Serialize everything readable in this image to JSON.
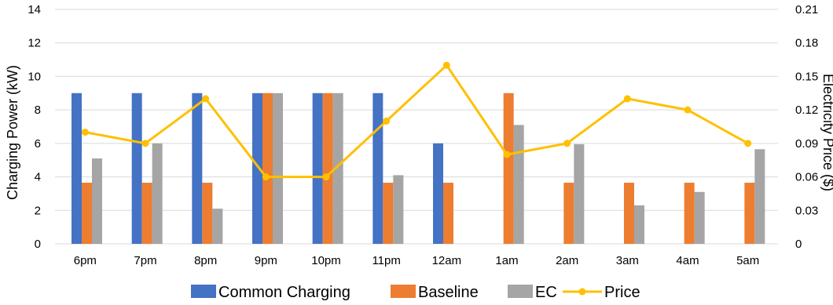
{
  "chart_data": {
    "type": "bar",
    "categories": [
      "6pm",
      "7pm",
      "8pm",
      "9pm",
      "10pm",
      "11pm",
      "12am",
      "1am",
      "2am",
      "3am",
      "4am",
      "5am"
    ],
    "series": [
      {
        "name": "Common Charging",
        "kind": "bar",
        "axis": "left",
        "color": "#4472c4",
        "values": [
          9,
          9,
          9,
          9,
          9,
          9,
          6,
          0,
          0,
          0,
          0,
          0
        ]
      },
      {
        "name": "Baseline",
        "kind": "bar",
        "axis": "left",
        "color": "#ed7d31",
        "values": [
          3.65,
          3.65,
          3.65,
          9,
          9,
          3.65,
          3.65,
          9,
          3.65,
          3.65,
          3.65,
          3.65
        ]
      },
      {
        "name": "EC",
        "kind": "bar",
        "axis": "left",
        "color": "#a5a5a5",
        "values": [
          5.1,
          6,
          2.1,
          9,
          9,
          4.1,
          0,
          7.1,
          5.95,
          2.3,
          3.1,
          5.65
        ]
      },
      {
        "name": "Price",
        "kind": "line",
        "axis": "right",
        "color": "#ffc000",
        "values": [
          0.1,
          0.09,
          0.13,
          0.06,
          0.06,
          0.11,
          0.16,
          0.08,
          0.09,
          0.13,
          0.12,
          0.09
        ]
      }
    ],
    "ylabel": "Charging Power (kW)",
    "y2label": "Electricity Price ($)",
    "ylim": [
      0,
      14
    ],
    "y2lim": [
      0,
      0.21
    ],
    "yticks": [
      "0",
      "2",
      "4",
      "6",
      "8",
      "10",
      "12",
      "14"
    ],
    "y2ticks": [
      "0",
      "0.03",
      "0.06",
      "0.09",
      "0.12",
      "0.15",
      "0.18",
      "0.21"
    ],
    "grid": true,
    "legend_position": "bottom"
  }
}
